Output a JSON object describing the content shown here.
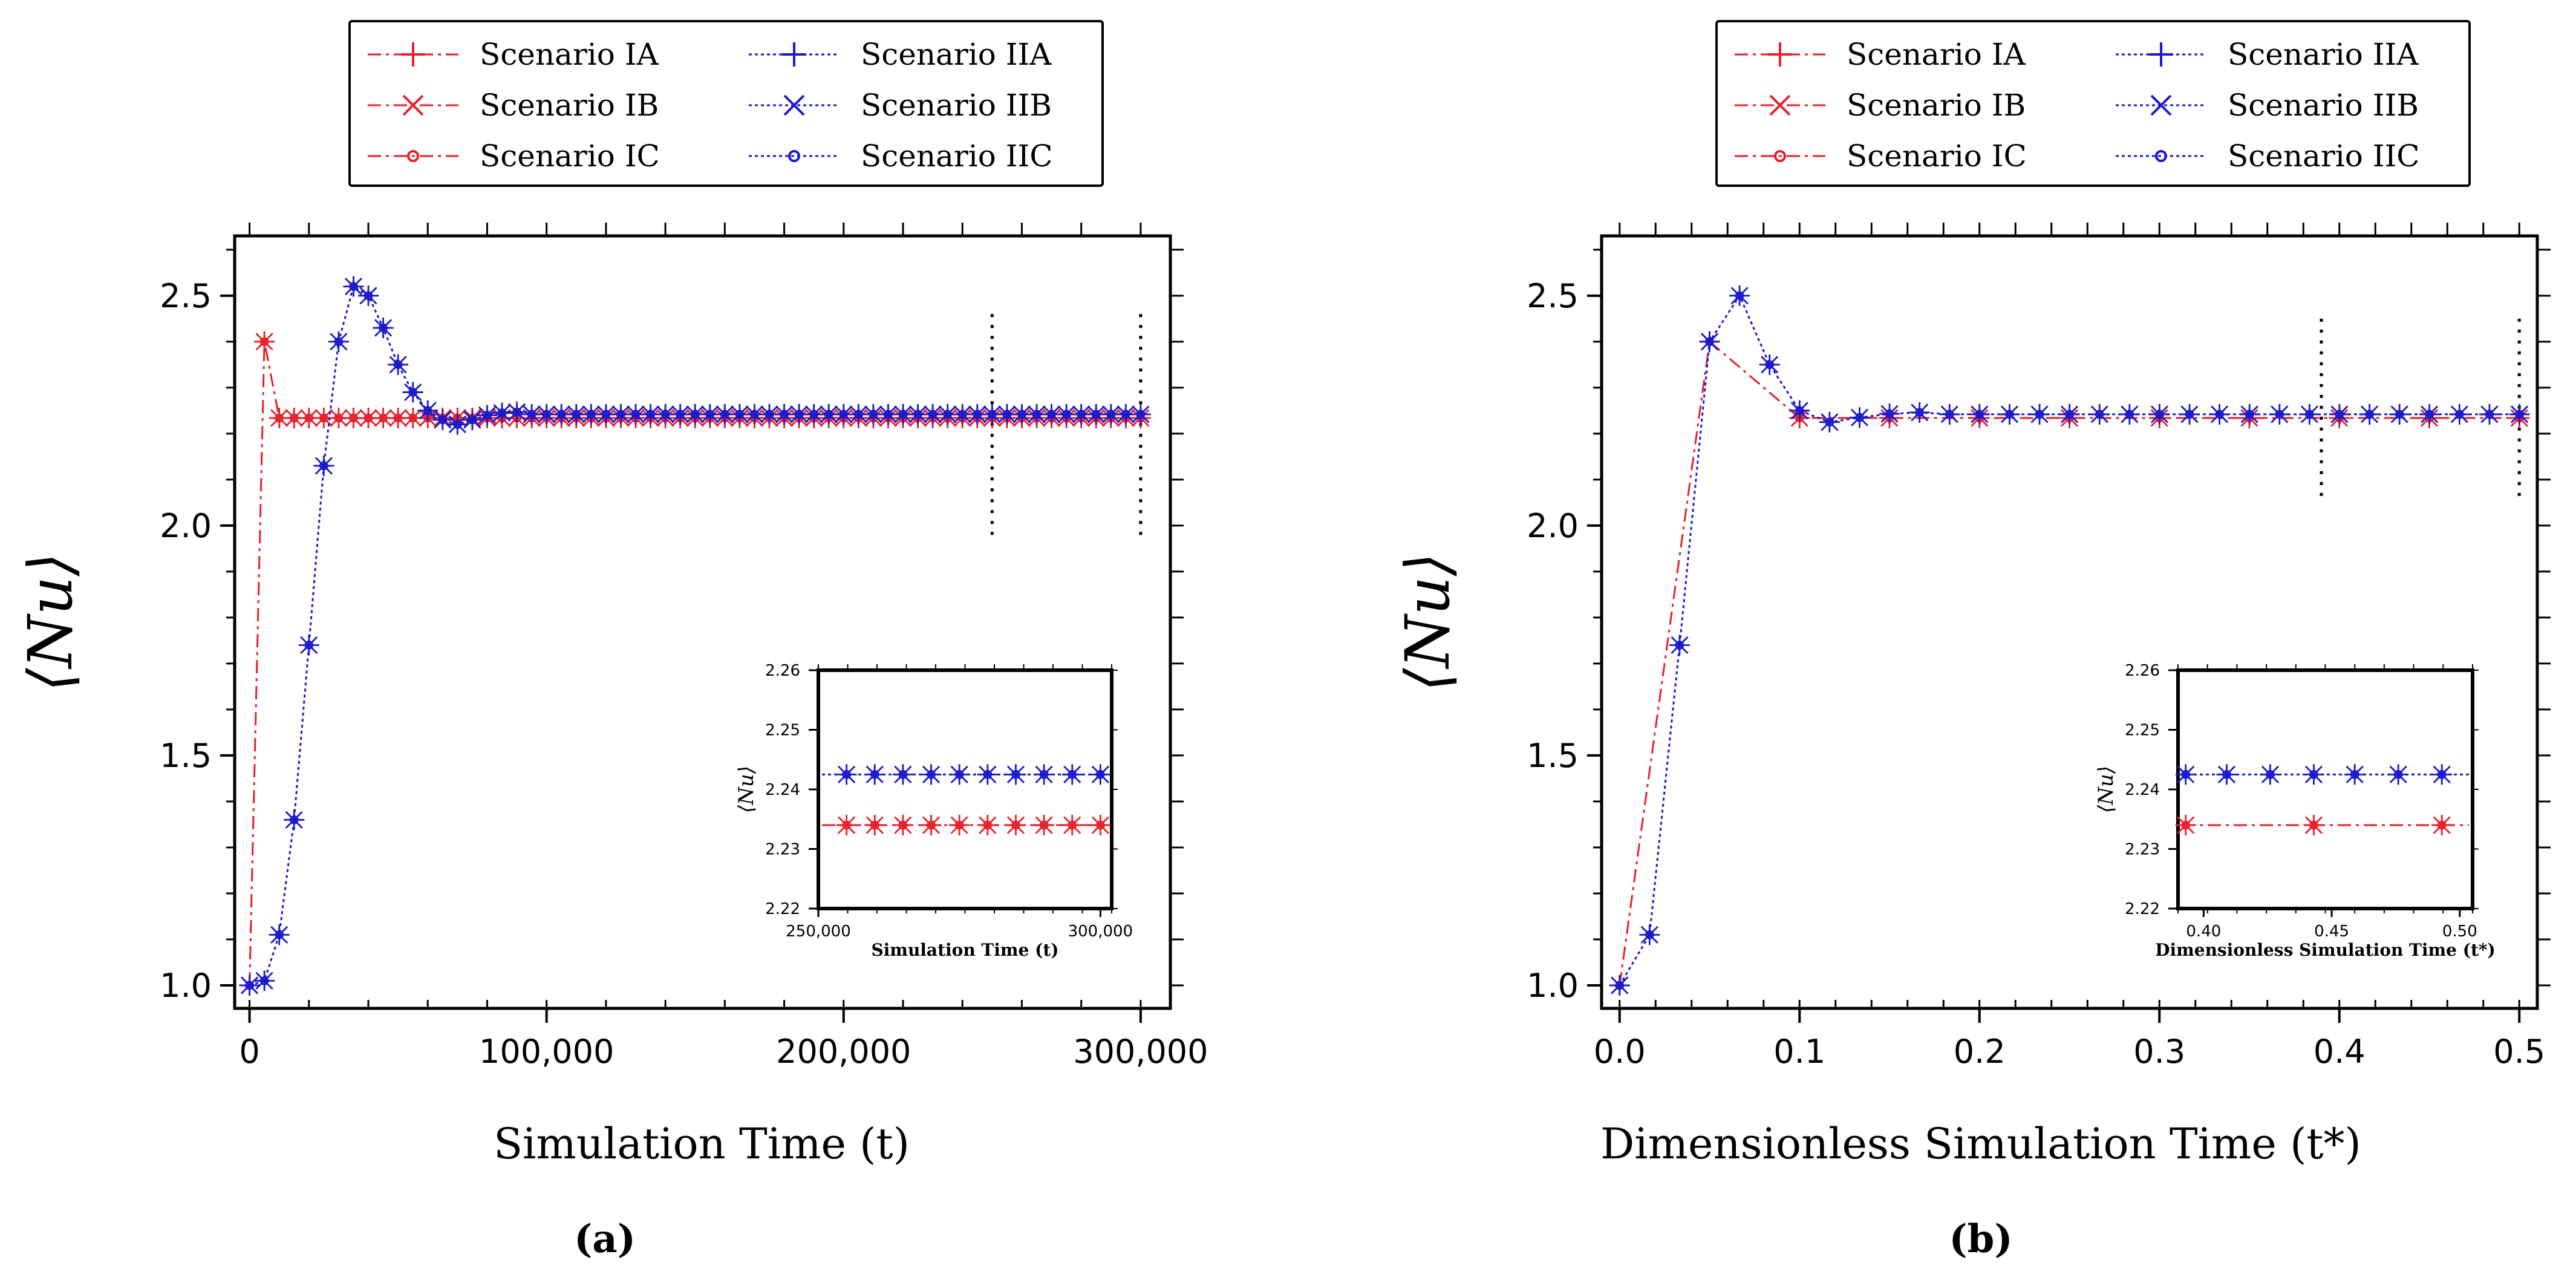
{
  "colors": {
    "red": "#e8202a",
    "blue": "#1a1acc",
    "frame": "#000000"
  },
  "legend_items": [
    {
      "label": "Scenario IA",
      "color": "red",
      "marker": "plus",
      "dash": "dashdot"
    },
    {
      "label": "Scenario IIA",
      "color": "blue",
      "marker": "plus",
      "dash": "dotted"
    },
    {
      "label": "Scenario IB",
      "color": "red",
      "marker": "x",
      "dash": "dashdot"
    },
    {
      "label": "Scenario IIB",
      "color": "blue",
      "marker": "x",
      "dash": "dotted"
    },
    {
      "label": "Scenario IC",
      "color": "red",
      "marker": "circle",
      "dash": "dashdot"
    },
    {
      "label": "Scenario IIC",
      "color": "blue",
      "marker": "circle",
      "dash": "dotted"
    }
  ],
  "chart_data": [
    {
      "panel_label": "(a)",
      "type": "line",
      "xlabel": "Simulation Time (t)",
      "ylabel": "⟨Nu⟩",
      "xlim": [
        -5000,
        310000
      ],
      "ylim": [
        0.95,
        2.63
      ],
      "xticks": [
        0,
        100000,
        200000,
        300000
      ],
      "xtick_labels": [
        "0",
        "100,000",
        "200,000",
        "300,000"
      ],
      "yticks": [
        1.0,
        1.5,
        2.0,
        2.5
      ],
      "ytick_labels": [
        "1.0",
        "1.5",
        "2.0",
        "2.5"
      ],
      "vlines": [
        250000,
        300000
      ],
      "vline_range": [
        1.97,
        2.46
      ],
      "series": [
        {
          "name": "Scenario I",
          "color": "red",
          "dash": "dashdot",
          "x_start": 0,
          "x_step": 5000,
          "n": 61,
          "head": [
            1.0,
            2.4
          ],
          "settle": 2.234
        },
        {
          "name": "Scenario II",
          "color": "blue",
          "dash": "dotted",
          "x_start": 0,
          "x_step": 5000,
          "n": 61,
          "head": [
            1.0,
            1.01,
            1.11,
            1.36,
            1.74,
            2.13,
            2.4,
            2.52,
            2.5,
            2.43,
            2.35,
            2.29,
            2.25,
            2.23,
            2.22,
            2.23,
            2.24,
            2.245,
            2.247
          ],
          "settle": 2.242
        }
      ],
      "inset": {
        "xlabel": "Simulation Time (t)",
        "ylabel": "⟨Nu⟩",
        "xlim": [
          250000,
          302000
        ],
        "ylim": [
          2.22,
          2.26
        ],
        "xticks": [
          250000,
          300000
        ],
        "xtick_labels": [
          "250,000",
          "300,000"
        ],
        "yticks": [
          2.22,
          2.23,
          2.24,
          2.25,
          2.26
        ],
        "ytick_labels": [
          "2.22",
          "2.23",
          "2.24",
          "2.25",
          "2.26"
        ],
        "series": [
          {
            "name": "Scenario I",
            "color": "red",
            "x": [
              255000,
              260000,
              265000,
              270000,
              275000,
              280000,
              285000,
              290000,
              295000,
              300000
            ],
            "value": 2.234
          },
          {
            "name": "Scenario II",
            "color": "blue",
            "x": [
              255000,
              260000,
              265000,
              270000,
              275000,
              280000,
              285000,
              290000,
              295000,
              300000
            ],
            "value": 2.2425
          }
        ]
      }
    },
    {
      "panel_label": "(b)",
      "type": "line",
      "xlabel": "Dimensionless Simulation Time (t*)",
      "ylabel": "⟨Nu⟩",
      "xlim": [
        -0.01,
        0.51
      ],
      "ylim": [
        0.95,
        2.63
      ],
      "xticks": [
        0.0,
        0.1,
        0.2,
        0.3,
        0.4,
        0.5
      ],
      "xtick_labels": [
        "0.0",
        "0.1",
        "0.2",
        "0.3",
        "0.4",
        "0.5"
      ],
      "yticks": [
        1.0,
        1.5,
        2.0,
        2.5
      ],
      "ytick_labels": [
        "1.0",
        "1.5",
        "2.0",
        "2.5"
      ],
      "vlines": [
        0.39,
        0.5
      ],
      "vline_range": [
        2.05,
        2.45
      ],
      "series": [
        {
          "name": "Scenario I",
          "color": "red",
          "dash": "dashdot",
          "x": [
            0.0,
            0.05,
            0.1,
            0.15,
            0.2,
            0.25,
            0.3,
            0.35,
            0.4,
            0.45,
            0.5
          ],
          "y": [
            1.0,
            2.4,
            2.234,
            2.234,
            2.234,
            2.234,
            2.234,
            2.234,
            2.234,
            2.234,
            2.234
          ]
        },
        {
          "name": "Scenario II",
          "color": "blue",
          "dash": "dotted",
          "x_start": 0.0,
          "x_step": 0.01667,
          "n": 31,
          "head": [
            1.0,
            1.11,
            1.74,
            2.4,
            2.5,
            2.35,
            2.25,
            2.225,
            2.235,
            2.243,
            2.246
          ],
          "settle": 2.242
        }
      ],
      "inset": {
        "xlabel": "Dimensionless Simulation Time (t*)",
        "ylabel": "⟨Nu⟩",
        "xlim": [
          0.39,
          0.505
        ],
        "ylim": [
          2.22,
          2.26
        ],
        "xticks": [
          0.4,
          0.45,
          0.5
        ],
        "xtick_labels": [
          "0.40",
          "0.45",
          "0.50"
        ],
        "yticks": [
          2.22,
          2.23,
          2.24,
          2.25,
          2.26
        ],
        "ytick_labels": [
          "2.22",
          "2.23",
          "2.24",
          "2.25",
          "2.26"
        ],
        "series": [
          {
            "name": "Scenario I",
            "color": "red",
            "x": [
              0.393,
              0.443,
              0.493
            ],
            "value": 2.234
          },
          {
            "name": "Scenario II",
            "color": "blue",
            "x": [
              0.393,
              0.409,
              0.426,
              0.443,
              0.459,
              0.476,
              0.493
            ],
            "value": 2.2425
          }
        ]
      }
    }
  ]
}
